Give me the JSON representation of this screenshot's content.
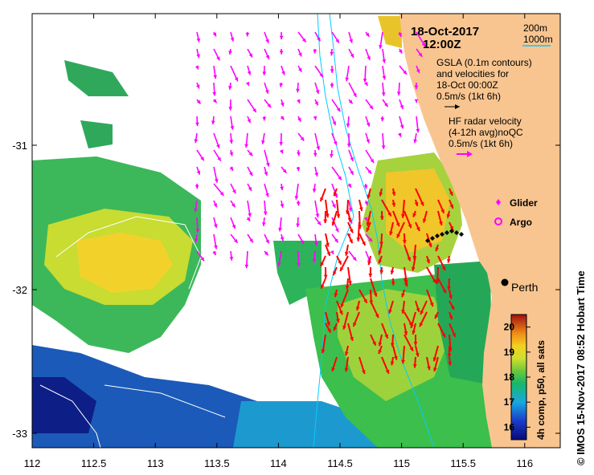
{
  "header": {
    "date": "18-Oct-2017",
    "time": "12:00Z"
  },
  "legend": {
    "isobath_200": "200m",
    "isobath_1000": "1000m",
    "gsla_line1": "GSLA (0.1m contours)",
    "gsla_line2": "and velocities for",
    "gsla_line3": "18-Oct 00:00Z",
    "gsla_scale": "0.5m/s (1kt 6h)",
    "hf_line1": "HF radar velocity",
    "hf_line2": "(4-12h avg)noQC",
    "hf_scale": "0.5m/s (1kt 6h)",
    "glider": "Glider",
    "argo": "Argo"
  },
  "place": {
    "city": "Perth"
  },
  "axes": {
    "x_ticks": [
      "112",
      "112.5",
      "113",
      "113.5",
      "114",
      "114.5",
      "115",
      "115.5",
      "116"
    ],
    "y_ticks": [
      "-31",
      "-32",
      "-33"
    ]
  },
  "colorbar": {
    "label": "4h comp, p50, all sats",
    "min": 15.5,
    "max": 20.5,
    "ticks": [
      "20",
      "19",
      "18",
      "17",
      "16"
    ]
  },
  "credit": "© IMOS 15-Nov-2017 08:52 Hobart Time",
  "colors": {
    "land": "#F8C590",
    "gsla_vector": "#FF00FF",
    "hf_vector": "#FF0000",
    "isobath": "#00CCFF",
    "accent_arrow": "#FF00FF"
  }
}
